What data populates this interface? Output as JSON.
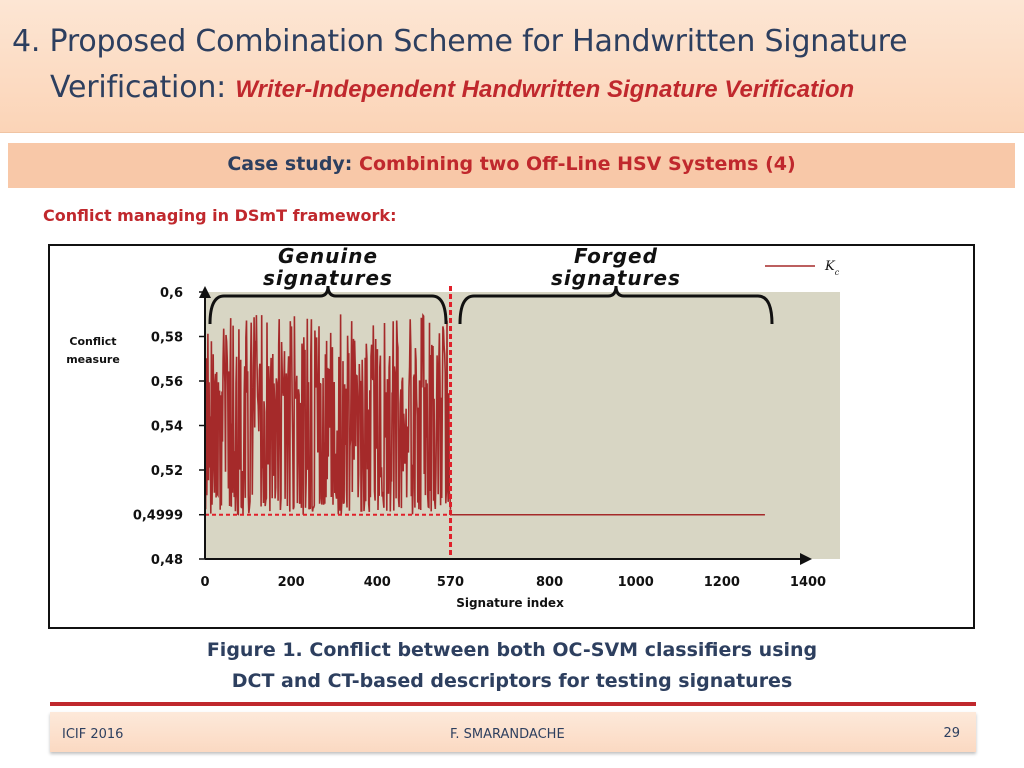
{
  "slide": {
    "title_line1": "4. Proposed Combination Scheme for Handwritten Signature",
    "title_line2_prefix": "Verification: ",
    "title_line2_sub": "Writer-Independent Handwritten Signature Verification",
    "case_label": "Case study: ",
    "case_value": "Combining two Off-Line HSV Systems (4)",
    "section_heading": "Conflict managing in DSmT framework:",
    "caption_line1": "Figure 1. Conflict between both OC-SVM classifiers using",
    "caption_line2": "DCT and CT-based descriptors for testing signatures",
    "footer_left": "ICIF 2016",
    "footer_center": "F. SMARANDACHE",
    "page_number": "29"
  },
  "colors": {
    "title_blue": "#2d3f5f",
    "accent_red": "#c0282d",
    "series_color": "#a52a2a",
    "plot_background": "#d8d6c4",
    "threshold_color": "#e0202a"
  },
  "chart_data": {
    "type": "line",
    "ylabel_line1": "Conflict",
    "ylabel_line2": "measure",
    "xlabel": "Signature index",
    "x_ticks": [
      "0",
      "200",
      "400",
      "570",
      "800",
      "1000",
      "1200",
      "1400"
    ],
    "y_ticks": [
      "0,48",
      "0,4999",
      "0,52",
      "0,54",
      "0,56",
      "0,58",
      "0,6"
    ],
    "xlim": [
      0,
      1400
    ],
    "ylim": [
      0.48,
      0.6
    ],
    "legend": "Kc",
    "legend_sub": "c",
    "legend_main": "K",
    "legend_position": "top-right",
    "annotations": [
      "Genuine signatures",
      "Forged signatures"
    ],
    "annotation_genuine_line1": "Genuine",
    "annotation_genuine_line2": "signatures",
    "annotation_forged_line1": "Forged",
    "annotation_forged_line2": "signatures",
    "threshold": {
      "y": 0.4999,
      "x_end": 570
    },
    "boundary_x": 570,
    "series": [
      {
        "name": "Kc",
        "segments": [
          {
            "x_start": 0,
            "x_end": 570,
            "pattern": "oscillating",
            "min": 0.4999,
            "max": 0.59
          },
          {
            "x_start": 570,
            "x_end": 1300,
            "pattern": "flat",
            "value": 0.4999
          }
        ]
      }
    ]
  }
}
